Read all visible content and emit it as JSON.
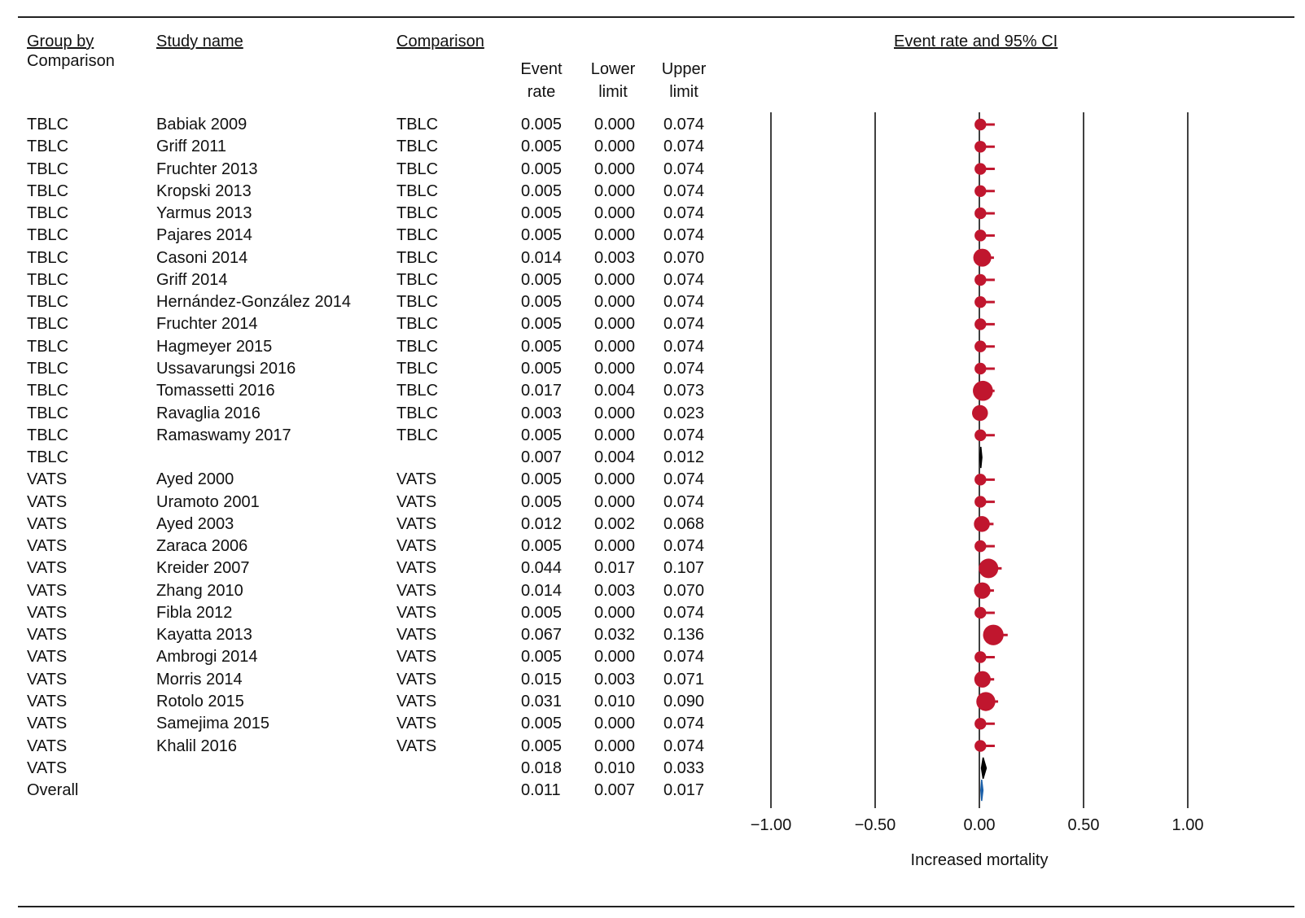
{
  "headers": {
    "group_line1": "Group by",
    "group_line2": "Comparison",
    "study": "Study name",
    "comparison": "Comparison",
    "event_rate_1": "Event",
    "event_rate_2": "rate",
    "lower_1": "Lower",
    "lower_2": "limit",
    "upper_1": "Upper",
    "upper_2": "limit",
    "plot_title": "Event rate and 95% CI"
  },
  "chart_data": {
    "type": "forest",
    "title": "Event rate and 95% CI",
    "xlabel": "Increased mortality",
    "xlim": [
      -1.0,
      1.0
    ],
    "xticks": [
      "−1.00",
      "−0.50",
      "0.00",
      "0.50",
      "1.00"
    ],
    "xtick_values": [
      -1.0,
      -0.5,
      0.0,
      0.5,
      1.0
    ],
    "colors": {
      "study": "#c0162e",
      "subgroup": "#000000",
      "overall": "#1a5fa8"
    },
    "rows": [
      {
        "group": "TBLC",
        "study": "Babiak 2009",
        "comparison": "TBLC",
        "er": "0.005",
        "lo": "0.000",
        "up": "0.074",
        "kind": "study",
        "weight": 1
      },
      {
        "group": "TBLC",
        "study": "Griff 2011",
        "comparison": "TBLC",
        "er": "0.005",
        "lo": "0.000",
        "up": "0.074",
        "kind": "study",
        "weight": 1
      },
      {
        "group": "TBLC",
        "study": "Fruchter 2013",
        "comparison": "TBLC",
        "er": "0.005",
        "lo": "0.000",
        "up": "0.074",
        "kind": "study",
        "weight": 1
      },
      {
        "group": "TBLC",
        "study": "Kropski 2013",
        "comparison": "TBLC",
        "er": "0.005",
        "lo": "0.000",
        "up": "0.074",
        "kind": "study",
        "weight": 1
      },
      {
        "group": "TBLC",
        "study": "Yarmus 2013",
        "comparison": "TBLC",
        "er": "0.005",
        "lo": "0.000",
        "up": "0.074",
        "kind": "study",
        "weight": 1
      },
      {
        "group": "TBLC",
        "study": "Pajares 2014",
        "comparison": "TBLC",
        "er": "0.005",
        "lo": "0.000",
        "up": "0.074",
        "kind": "study",
        "weight": 1
      },
      {
        "group": "TBLC",
        "study": "Casoni 2014",
        "comparison": "TBLC",
        "er": "0.014",
        "lo": "0.003",
        "up": "0.070",
        "kind": "study",
        "weight": 2.2
      },
      {
        "group": "TBLC",
        "study": "Griff 2014",
        "comparison": "TBLC",
        "er": "0.005",
        "lo": "0.000",
        "up": "0.074",
        "kind": "study",
        "weight": 1
      },
      {
        "group": "TBLC",
        "study": "Hernández-González 2014",
        "comparison": "TBLC",
        "er": "0.005",
        "lo": "0.000",
        "up": "0.074",
        "kind": "study",
        "weight": 1
      },
      {
        "group": "TBLC",
        "study": "Fruchter 2014",
        "comparison": "TBLC",
        "er": "0.005",
        "lo": "0.000",
        "up": "0.074",
        "kind": "study",
        "weight": 1
      },
      {
        "group": "TBLC",
        "study": "Hagmeyer 2015",
        "comparison": "TBLC",
        "er": "0.005",
        "lo": "0.000",
        "up": "0.074",
        "kind": "study",
        "weight": 1
      },
      {
        "group": "TBLC",
        "study": "Ussavarungsi 2016",
        "comparison": "TBLC",
        "er": "0.005",
        "lo": "0.000",
        "up": "0.074",
        "kind": "study",
        "weight": 1
      },
      {
        "group": "TBLC",
        "study": "Tomassetti 2016",
        "comparison": "TBLC",
        "er": "0.017",
        "lo": "0.004",
        "up": "0.073",
        "kind": "study",
        "weight": 2.6
      },
      {
        "group": "TBLC",
        "study": "Ravaglia 2016",
        "comparison": "TBLC",
        "er": "0.003",
        "lo": "0.000",
        "up": "0.023",
        "kind": "study",
        "weight": 1.8
      },
      {
        "group": "TBLC",
        "study": "Ramaswamy 2017",
        "comparison": "TBLC",
        "er": "0.005",
        "lo": "0.000",
        "up": "0.074",
        "kind": "study",
        "weight": 1
      },
      {
        "group": "TBLC",
        "study": "",
        "comparison": "",
        "er": "0.007",
        "lo": "0.004",
        "up": "0.012",
        "kind": "subgroup",
        "weight": 0
      },
      {
        "group": "VATS",
        "study": "Ayed 2000",
        "comparison": "VATS",
        "er": "0.005",
        "lo": "0.000",
        "up": "0.074",
        "kind": "study",
        "weight": 1
      },
      {
        "group": "VATS",
        "study": "Uramoto 2001",
        "comparison": "VATS",
        "er": "0.005",
        "lo": "0.000",
        "up": "0.074",
        "kind": "study",
        "weight": 1
      },
      {
        "group": "VATS",
        "study": "Ayed 2003",
        "comparison": "VATS",
        "er": "0.012",
        "lo": "0.002",
        "up": "0.068",
        "kind": "study",
        "weight": 1.8
      },
      {
        "group": "VATS",
        "study": "Zaraca 2006",
        "comparison": "VATS",
        "er": "0.005",
        "lo": "0.000",
        "up": "0.074",
        "kind": "study",
        "weight": 1
      },
      {
        "group": "VATS",
        "study": "Kreider 2007",
        "comparison": "VATS",
        "er": "0.044",
        "lo": "0.017",
        "up": "0.107",
        "kind": "study",
        "weight": 2.5
      },
      {
        "group": "VATS",
        "study": "Zhang 2010",
        "comparison": "VATS",
        "er": "0.014",
        "lo": "0.003",
        "up": "0.070",
        "kind": "study",
        "weight": 1.9
      },
      {
        "group": "VATS",
        "study": "Fibla 2012",
        "comparison": "VATS",
        "er": "0.005",
        "lo": "0.000",
        "up": "0.074",
        "kind": "study",
        "weight": 1
      },
      {
        "group": "VATS",
        "study": "Kayatta 2013",
        "comparison": "VATS",
        "er": "0.067",
        "lo": "0.032",
        "up": "0.136",
        "kind": "study",
        "weight": 2.7
      },
      {
        "group": "VATS",
        "study": "Ambrogi 2014",
        "comparison": "VATS",
        "er": "0.005",
        "lo": "0.000",
        "up": "0.074",
        "kind": "study",
        "weight": 1
      },
      {
        "group": "VATS",
        "study": "Morris 2014",
        "comparison": "VATS",
        "er": "0.015",
        "lo": "0.003",
        "up": "0.071",
        "kind": "study",
        "weight": 1.9
      },
      {
        "group": "VATS",
        "study": "Rotolo 2015",
        "comparison": "VATS",
        "er": "0.031",
        "lo": "0.010",
        "up": "0.090",
        "kind": "study",
        "weight": 2.4
      },
      {
        "group": "VATS",
        "study": "Samejima 2015",
        "comparison": "VATS",
        "er": "0.005",
        "lo": "0.000",
        "up": "0.074",
        "kind": "study",
        "weight": 1
      },
      {
        "group": "VATS",
        "study": "Khalil 2016",
        "comparison": "VATS",
        "er": "0.005",
        "lo": "0.000",
        "up": "0.074",
        "kind": "study",
        "weight": 1
      },
      {
        "group": "VATS",
        "study": "",
        "comparison": "",
        "er": "0.018",
        "lo": "0.010",
        "up": "0.033",
        "kind": "subgroup",
        "weight": 0
      },
      {
        "group": "Overall",
        "study": "",
        "comparison": "",
        "er": "0.011",
        "lo": "0.007",
        "up": "0.017",
        "kind": "overall",
        "weight": 0
      }
    ]
  }
}
